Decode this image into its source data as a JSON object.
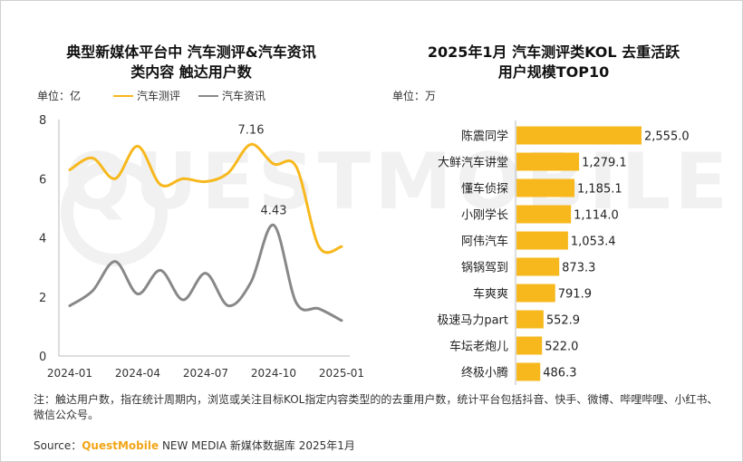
{
  "chart_data": [
    {
      "type": "line",
      "title_line1": "典型新媒体平台中 汽车测评&汽车资讯",
      "title_line2": "类内容 触达用户数",
      "unit": "单位：亿",
      "ylim": [
        0,
        8
      ],
      "yticks": [
        "0",
        "2",
        "4",
        "6",
        "8"
      ],
      "xticks": [
        "2024-01",
        "2024-04",
        "2024-07",
        "2024-10",
        "2025-01"
      ],
      "x": [
        "2024-01",
        "2024-02",
        "2024-03",
        "2024-04",
        "2024-05",
        "2024-06",
        "2024-07",
        "2024-08",
        "2024-09",
        "2024-10",
        "2024-11",
        "2024-12",
        "2025-01"
      ],
      "series": [
        {
          "name": "汽车测评",
          "color": "#f7b81e",
          "values": [
            6.3,
            6.7,
            6.0,
            7.1,
            5.8,
            6.0,
            5.9,
            6.2,
            7.16,
            6.5,
            6.4,
            3.7,
            3.7
          ]
        },
        {
          "name": "汽车资讯",
          "color": "#888888",
          "values": [
            1.7,
            2.2,
            3.2,
            2.1,
            2.9,
            1.9,
            2.8,
            1.7,
            2.5,
            4.43,
            1.8,
            1.6,
            1.2
          ]
        }
      ],
      "data_labels": [
        {
          "text": "7.16",
          "series": 0,
          "index": 8
        },
        {
          "text": "4.43",
          "series": 1,
          "index": 9
        }
      ]
    },
    {
      "type": "bar",
      "title_line1": "2025年1月 汽车测评类KOL 去重活跃",
      "title_line2": "用户规模TOP10",
      "unit": "单位：万",
      "categories": [
        "陈震同学",
        "大鲜汽车讲堂",
        "懂车侦探",
        "小刚学长",
        "阿伟汽车",
        "锅锅驾到",
        "车爽爽",
        "极速马力part",
        "车坛老炮儿",
        "终极小腾"
      ],
      "values": [
        2555.0,
        1279.1,
        1185.1,
        1114.0,
        1053.4,
        873.3,
        791.9,
        552.9,
        522.0,
        486.3
      ],
      "value_labels": [
        "2,555.0",
        "1,279.1",
        "1,185.1",
        "1,114.0",
        "1,053.4",
        "873.3",
        "791.9",
        "552.9",
        "522.0",
        "486.3"
      ],
      "bar_color": "#f7b81e"
    }
  ],
  "note": "注：触达用户数，指在统计周期内，浏览或关注目标KOL指定内容类型的的去重用户数，统计平台包括抖音、快手、微博、哔哩哔哩、小红书、微信公众号。",
  "source": {
    "prefix": "Source：",
    "brand": "QuestMobile",
    "suffix": " NEW MEDIA 新媒体数据库 2025年1月"
  }
}
